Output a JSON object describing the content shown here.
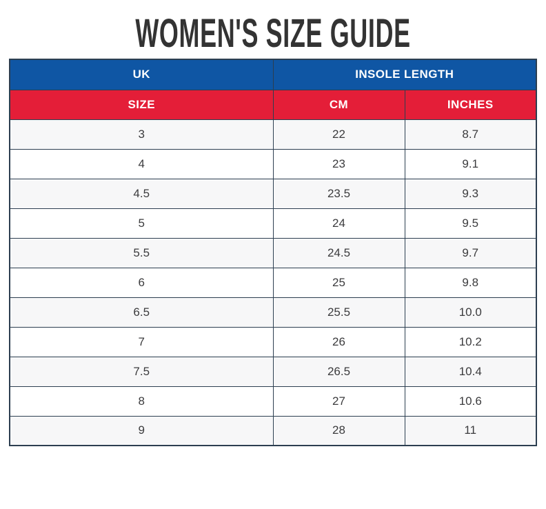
{
  "page": {
    "title": "WOMEN'S SIZE GUIDE"
  },
  "colors": {
    "header_blue": "#0f56a4",
    "header_red": "#e41e38",
    "table_border": "#2c3e50",
    "row_stripe": "#f7f7f8",
    "title_color": "#333333"
  },
  "table": {
    "header_top": {
      "uk": "UK",
      "insole_length": "INSOLE LENGTH"
    },
    "header_sub": {
      "size": "SIZE",
      "cm": "CM",
      "inches": "INCHES"
    },
    "rows": [
      [
        "3",
        "22",
        "8.7"
      ],
      [
        "4",
        "23",
        "9.1"
      ],
      [
        "4.5",
        "23.5",
        "9.3"
      ],
      [
        "5",
        "24",
        "9.5"
      ],
      [
        "5.5",
        "24.5",
        "9.7"
      ],
      [
        "6",
        "25",
        "9.8"
      ],
      [
        "6.5",
        "25.5",
        "10.0"
      ],
      [
        "7",
        "26",
        "10.2"
      ],
      [
        "7.5",
        "26.5",
        "10.4"
      ],
      [
        "8",
        "27",
        "10.6"
      ],
      [
        "9",
        "28",
        "11"
      ]
    ]
  },
  "chart_data": {
    "type": "table",
    "title": "WOMEN'S SIZE GUIDE",
    "columns": [
      "UK SIZE",
      "INSOLE LENGTH CM",
      "INSOLE LENGTH INCHES"
    ],
    "uk_sizes": [
      3,
      4,
      4.5,
      5,
      5.5,
      6,
      6.5,
      7,
      7.5,
      8,
      9
    ],
    "insole_cm": [
      22,
      23,
      23.5,
      24,
      24.5,
      25,
      25.5,
      26,
      26.5,
      27,
      28
    ],
    "insole_inches": [
      8.7,
      9.1,
      9.3,
      9.5,
      9.7,
      9.8,
      10.0,
      10.2,
      10.4,
      10.6,
      11
    ]
  }
}
